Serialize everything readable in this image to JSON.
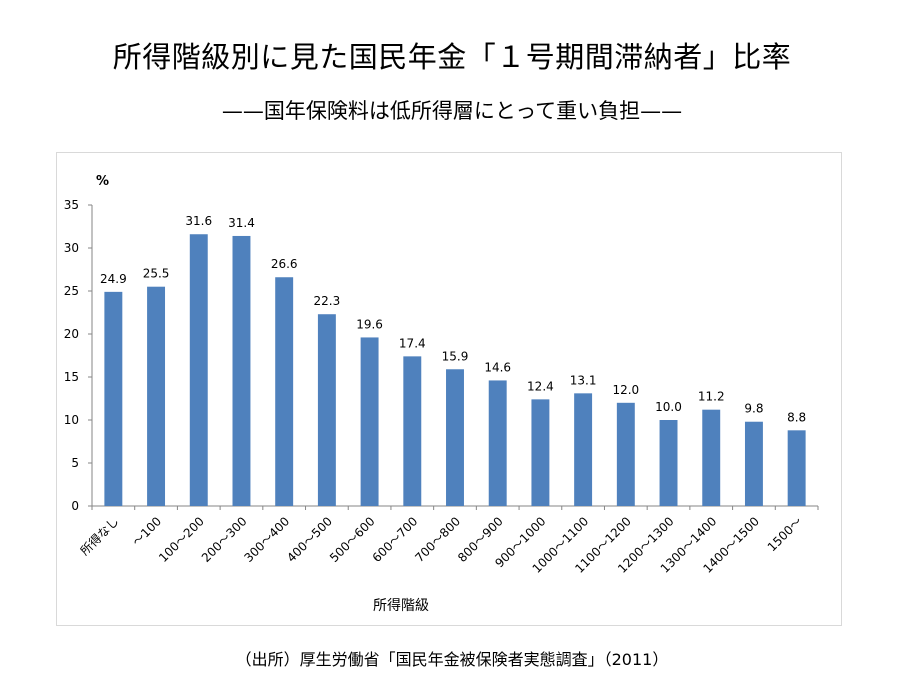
{
  "title": "所得階級別に見た国民年金「１号期間滞納者」比率",
  "subtitle": "——国年保険料は低所得層にとって重い負担——",
  "source": "（出所）厚生労働省「国民年金被保険者実態調査」（2011）",
  "colors": {
    "bar": "#4F81BD",
    "axis": "#868686",
    "frame": "#d9d9d9"
  },
  "chart_data": {
    "type": "bar",
    "ylabel": "%",
    "xlabel": "所得階級",
    "ylim": [
      0,
      35
    ],
    "yticks": [
      0,
      5,
      10,
      15,
      20,
      25,
      30,
      35
    ],
    "grid": false,
    "categories": [
      "所得なし",
      "～100",
      "100～200",
      "200～300",
      "300～400",
      "400～500",
      "500～600",
      "600～700",
      "700～800",
      "800～900",
      "900～1000",
      "1000～1100",
      "1100～1200",
      "1200～1300",
      "1300～1400",
      "1400～1500",
      "1500～"
    ],
    "values": [
      24.9,
      25.5,
      31.6,
      31.4,
      26.6,
      22.3,
      19.6,
      17.4,
      15.9,
      14.6,
      12.4,
      13.1,
      12.0,
      10.0,
      11.2,
      9.8,
      8.8
    ],
    "data_labels": [
      "24.9",
      "25.5",
      "31.6",
      "31.4",
      "26.6",
      "22.3",
      "19.6",
      "17.4",
      "15.9",
      "14.6",
      "12.4",
      "13.1",
      "12.0",
      "10.0",
      "11.2",
      "9.8",
      "8.8"
    ]
  }
}
